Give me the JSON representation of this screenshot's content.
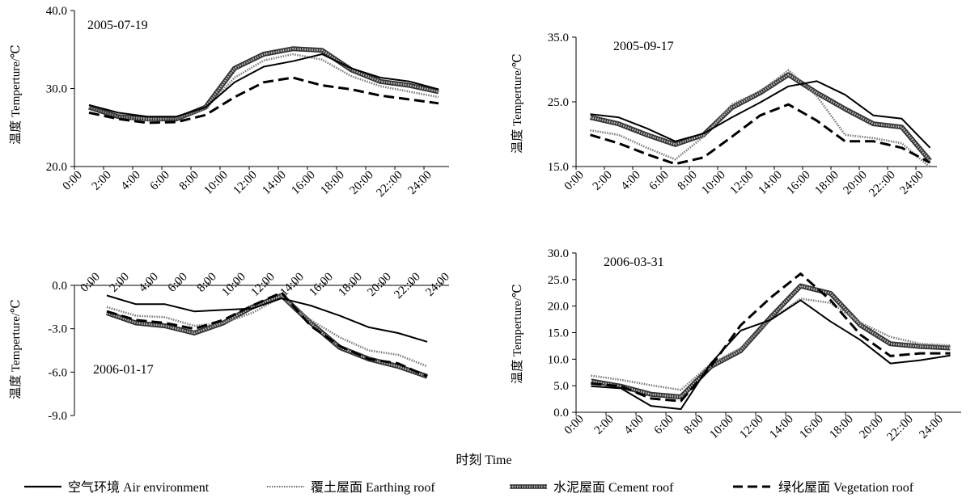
{
  "figure": {
    "x_caption": "时刻  Time",
    "y_label": "温度  Temperture/℃"
  },
  "legend": [
    {
      "key": "air",
      "label": "空气环境    Air environment"
    },
    {
      "key": "earth",
      "label": "覆土屋面    Earthing roof"
    },
    {
      "key": "cement",
      "label": "水泥屋面    Cement roof"
    },
    {
      "key": "veg",
      "label": "绿化屋面    Vegetation roof"
    }
  ],
  "chart_data": [
    {
      "type": "line",
      "date": "2005-07-19",
      "ylabel": "温度  Temperture/℃",
      "ylim": [
        20,
        40
      ],
      "yticks": [
        "20.0",
        "30.0",
        "40.0"
      ],
      "xticks": [
        "0:00",
        "2:00",
        "4:00",
        "6:00",
        "8:00",
        "10:00",
        "12:00",
        "14:00",
        "16:00",
        "18:00",
        "20:00",
        "22::00",
        "24:00"
      ],
      "x_axis": "bottom",
      "series": [
        {
          "name": "air",
          "values": [
            27.9,
            26.9,
            26.4,
            26.4,
            27.6,
            30.8,
            32.8,
            33.5,
            34.4,
            32.6,
            31.4,
            30.9,
            29.9
          ]
        },
        {
          "name": "earth",
          "values": [
            27.6,
            26.4,
            25.9,
            26.1,
            27.4,
            31.4,
            33.6,
            34.4,
            33.7,
            31.6,
            30.3,
            29.6,
            28.9
          ]
        },
        {
          "name": "cement",
          "values": [
            27.6,
            26.4,
            26.1,
            26.1,
            27.6,
            32.6,
            34.4,
            35.1,
            34.9,
            32.4,
            30.9,
            30.4,
            29.6
          ]
        },
        {
          "name": "veg",
          "values": [
            26.9,
            26.1,
            25.6,
            25.7,
            26.6,
            28.9,
            30.8,
            31.4,
            30.4,
            29.9,
            29.1,
            28.6,
            28.1
          ]
        }
      ]
    },
    {
      "type": "line",
      "date": "2005-09-17",
      "ylabel": "温度  Temperture/℃",
      "ylim": [
        15,
        35
      ],
      "yticks": [
        "15.0",
        "25.0",
        "35.0"
      ],
      "xticks": [
        "0:00",
        "2:00",
        "4:00",
        "6:00",
        "8:00",
        "10:00",
        "12:00",
        "14:00",
        "16:00",
        "18:00",
        "20:00",
        "22::00",
        "24:00"
      ],
      "x_axis": "bottom",
      "series": [
        {
          "name": "air",
          "values": [
            23.1,
            22.6,
            20.9,
            18.9,
            20.1,
            22.6,
            24.9,
            27.4,
            28.2,
            26.1,
            22.9,
            22.4,
            17.9
          ]
        },
        {
          "name": "earth",
          "values": [
            20.6,
            19.9,
            17.9,
            16.1,
            19.6,
            24.6,
            26.6,
            29.9,
            25.9,
            19.9,
            19.4,
            18.6,
            14.9
          ]
        },
        {
          "name": "cement",
          "values": [
            22.6,
            21.6,
            19.9,
            18.4,
            19.9,
            24.1,
            26.4,
            29.2,
            26.4,
            23.9,
            21.6,
            21.1,
            15.9
          ]
        },
        {
          "name": "veg",
          "values": [
            19.9,
            18.6,
            16.9,
            15.4,
            16.4,
            19.6,
            22.9,
            24.6,
            22.1,
            18.9,
            18.9,
            17.9,
            15.6
          ]
        }
      ]
    },
    {
      "type": "line",
      "date": "2006-01-17",
      "ylabel": "温度  Temperture/℃",
      "ylim": [
        -9,
        0
      ],
      "yticks": [
        "0.0",
        "-3.0",
        "-6.0",
        "-9.0"
      ],
      "xticks": [
        "0:00",
        "2:00",
        "4:00",
        "6:00",
        "8:00",
        "10:00",
        "12:00",
        "14:00",
        "16:00",
        "18:00",
        "20:00",
        "22::00",
        "24:00"
      ],
      "x_axis": "top",
      "series": [
        {
          "name": "air",
          "values": [
            -0.7,
            -1.3,
            -1.3,
            -1.8,
            -1.7,
            -1.6,
            -0.9,
            -1.4,
            -2.1,
            -2.9,
            -3.3,
            -3.9
          ]
        },
        {
          "name": "earth",
          "values": [
            -1.5,
            -2.1,
            -2.2,
            -2.8,
            -2.6,
            -1.9,
            -0.8,
            -2.4,
            -3.6,
            -4.5,
            -4.8,
            -5.6
          ]
        },
        {
          "name": "cement",
          "values": [
            -1.9,
            -2.6,
            -2.8,
            -3.3,
            -2.6,
            -1.5,
            -0.7,
            -2.6,
            -4.3,
            -5.1,
            -5.6,
            -6.3
          ]
        },
        {
          "name": "veg",
          "values": [
            -1.8,
            -2.4,
            -2.6,
            -3.0,
            -2.4,
            -1.4,
            -0.5,
            -2.8,
            -4.2,
            -5.1,
            -5.4,
            -6.3
          ]
        }
      ]
    },
    {
      "type": "line",
      "date": "2006-03-31",
      "ylabel": "温度  Temperture/℃",
      "ylim": [
        0,
        30
      ],
      "yticks": [
        "0.0",
        "5.0",
        "10.0",
        "15.0",
        "20.0",
        "25.0",
        "30.0"
      ],
      "xticks": [
        "0:00",
        "2:00",
        "4:00",
        "6:00",
        "8:00",
        "10:00",
        "12:00",
        "14:00",
        "16:00",
        "18:00",
        "20:00",
        "22::00",
        "24:00"
      ],
      "x_axis": "bottom",
      "series": [
        {
          "name": "air",
          "values": [
            4.9,
            4.5,
            1.2,
            0.6,
            9.2,
            15.4,
            17.4,
            21.1,
            17.1,
            13.6,
            9.2,
            9.8,
            10.7
          ]
        },
        {
          "name": "earth",
          "values": [
            6.9,
            6.1,
            5.1,
            4.2,
            9.1,
            12.1,
            17.4,
            21.4,
            20.6,
            16.9,
            14.2,
            12.9,
            12.6
          ]
        },
        {
          "name": "cement",
          "values": [
            5.9,
            4.9,
            3.4,
            2.9,
            8.6,
            11.6,
            17.9,
            23.8,
            22.4,
            16.4,
            12.9,
            12.4,
            12.1
          ]
        },
        {
          "name": "veg",
          "values": [
            5.4,
            4.9,
            2.6,
            2.1,
            8.6,
            16.4,
            21.6,
            26.1,
            21.1,
            14.6,
            10.6,
            11.1,
            11.1
          ]
        }
      ]
    }
  ]
}
